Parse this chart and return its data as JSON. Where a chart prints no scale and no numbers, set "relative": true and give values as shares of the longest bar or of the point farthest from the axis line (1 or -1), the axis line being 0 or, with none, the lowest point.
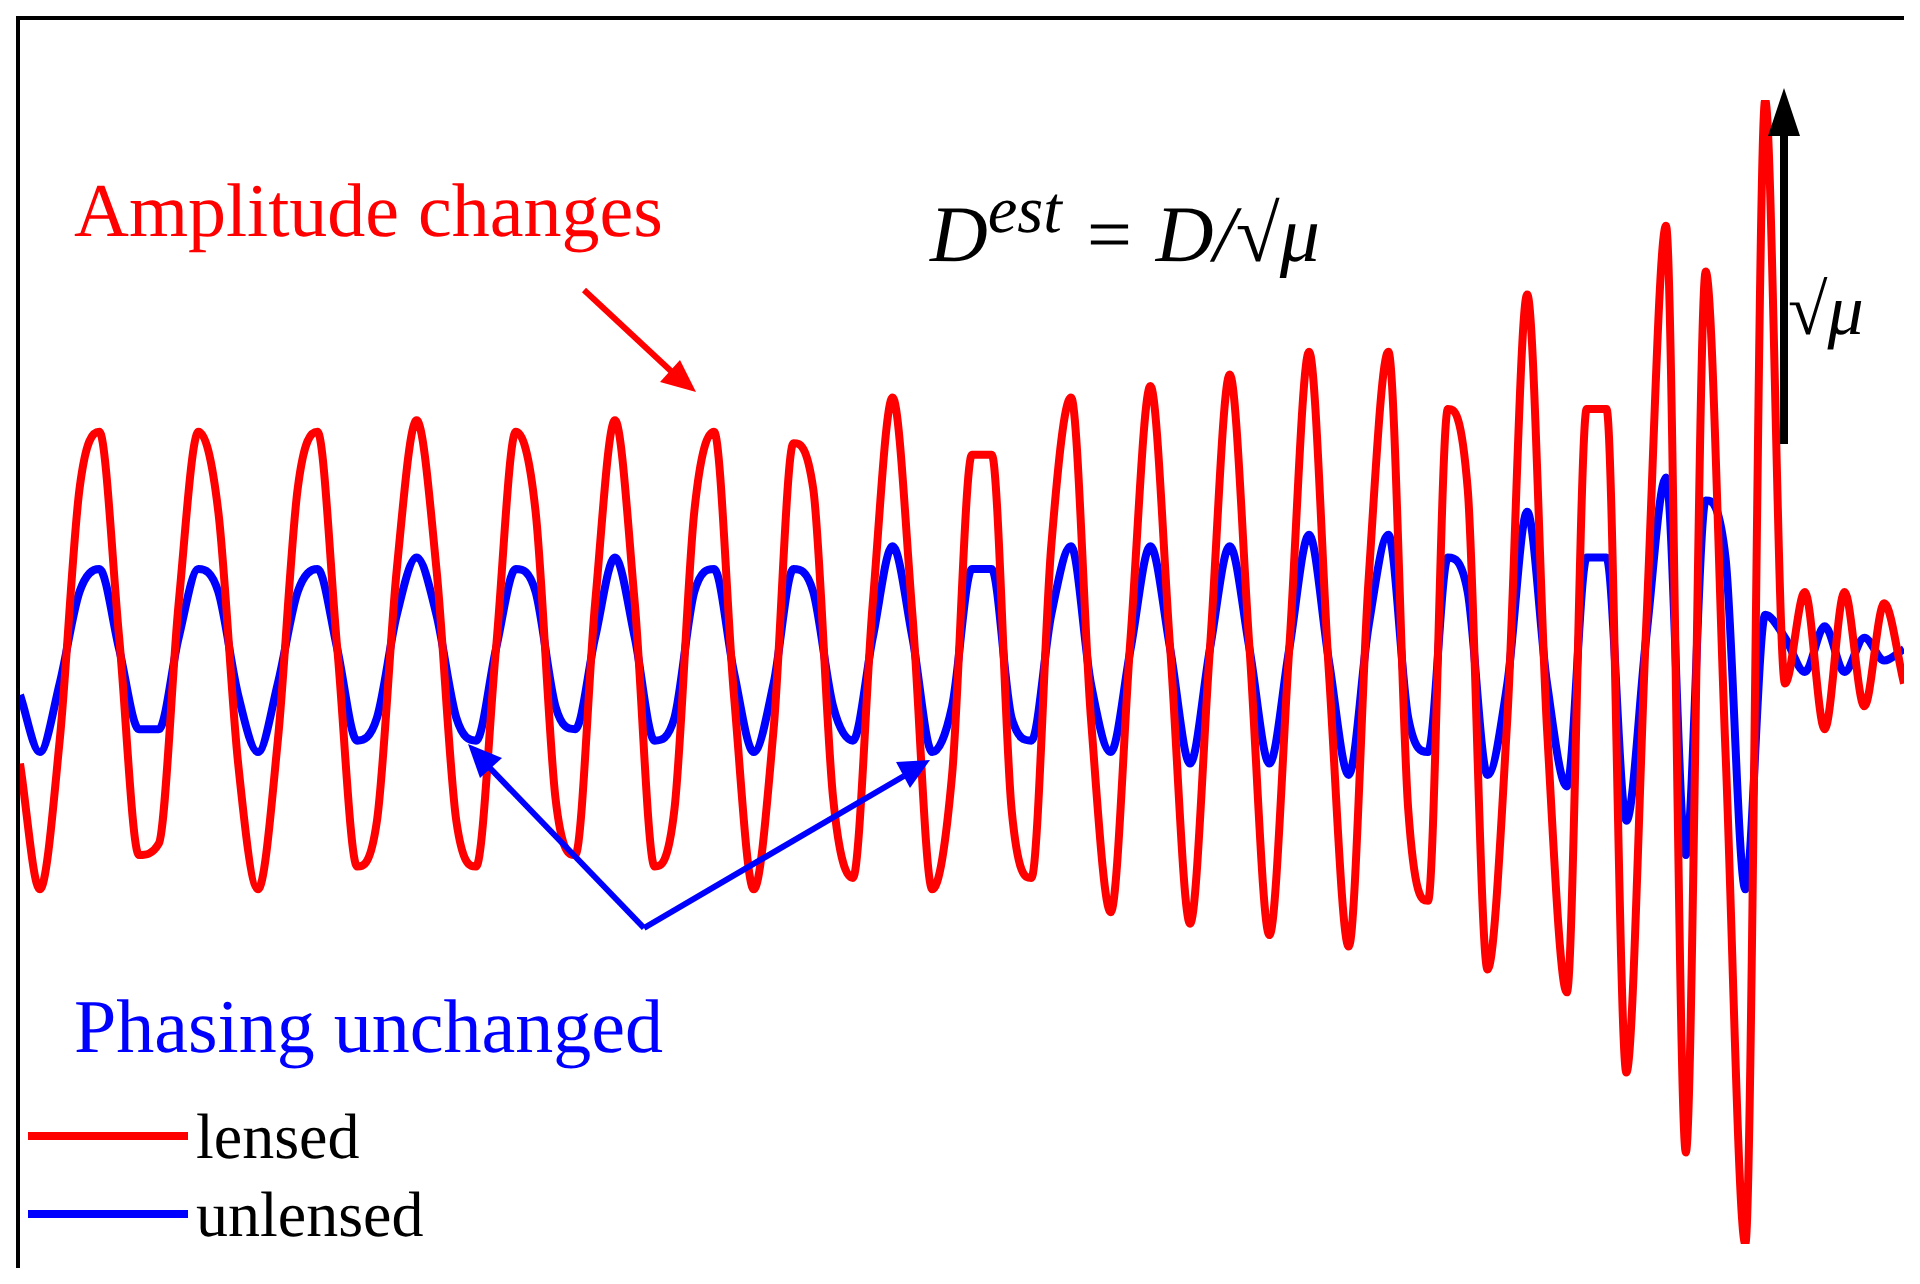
{
  "chart_data": {
    "type": "line",
    "relative": true,
    "grid": false,
    "legend": "bottom left",
    "marker": "none",
    "line_style": "solid",
    "categories": [
      null,
      null,
      null,
      null,
      null,
      null,
      null,
      null,
      null,
      null,
      null,
      null,
      null,
      null,
      null,
      null,
      null,
      null,
      null,
      null,
      null,
      null,
      null,
      null,
      null,
      null,
      null,
      null,
      null,
      null,
      null,
      null,
      null,
      null,
      null,
      null,
      null,
      null,
      null,
      null,
      null,
      null,
      null,
      null,
      null,
      null,
      null,
      null,
      null,
      null,
      null,
      null,
      null,
      null,
      null,
      null,
      null,
      null,
      null,
      null,
      null,
      null,
      null,
      null,
      null,
      null,
      null,
      null,
      null,
      null,
      null,
      null,
      null,
      null,
      null,
      null,
      null,
      null,
      null,
      null,
      null,
      null,
      null,
      null,
      null,
      null,
      null,
      null,
      null,
      null,
      null,
      null,
      null,
      null,
      null,
      null
    ],
    "series": [
      {
        "name": "lensed",
        "color": "#ff0000",
        "values": [
          0.42,
          0.31,
          0.44,
          0.66,
          0.71,
          0.53,
          0.34,
          0.35,
          0.56,
          0.71,
          0.64,
          0.42,
          0.31,
          0.44,
          0.66,
          0.71,
          0.52,
          0.33,
          0.37,
          0.59,
          0.72,
          0.59,
          0.37,
          0.33,
          0.52,
          0.71,
          0.64,
          0.39,
          0.34,
          0.56,
          0.72,
          0.56,
          0.33,
          0.38,
          0.64,
          0.71,
          0.48,
          0.31,
          0.45,
          0.7,
          0.66,
          0.39,
          0.32,
          0.56,
          0.74,
          0.55,
          0.31,
          0.41,
          0.69,
          0.69,
          0.38,
          0.32,
          0.61,
          0.74,
          0.46,
          0.29,
          0.53,
          0.75,
          0.52,
          0.28,
          0.52,
          0.76,
          0.52,
          0.27,
          0.52,
          0.78,
          0.5,
          0.26,
          0.58,
          0.78,
          0.38,
          0.3,
          0.73,
          0.66,
          0.24,
          0.46,
          0.83,
          0.45,
          0.22,
          0.73,
          0.73,
          0.15,
          0.54,
          0.89,
          0.08,
          0.85,
          0.43,
          0,
          1,
          0.49,
          0.57,
          0.45,
          0.57,
          0.47,
          0.56,
          0.49
        ]
      },
      {
        "name": "unlensed",
        "color": "#0000ff",
        "values": [
          0.48,
          0.43,
          0.49,
          0.57,
          0.59,
          0.52,
          0.45,
          0.45,
          0.53,
          0.59,
          0.57,
          0.48,
          0.43,
          0.49,
          0.57,
          0.59,
          0.52,
          0.44,
          0.46,
          0.55,
          0.6,
          0.55,
          0.46,
          0.44,
          0.52,
          0.59,
          0.57,
          0.47,
          0.45,
          0.53,
          0.6,
          0.53,
          0.44,
          0.46,
          0.57,
          0.59,
          0.5,
          0.43,
          0.49,
          0.59,
          0.57,
          0.47,
          0.44,
          0.53,
          0.61,
          0.53,
          0.43,
          0.47,
          0.59,
          0.59,
          0.46,
          0.44,
          0.55,
          0.61,
          0.49,
          0.43,
          0.52,
          0.61,
          0.52,
          0.42,
          0.52,
          0.61,
          0.52,
          0.42,
          0.52,
          0.62,
          0.51,
          0.41,
          0.54,
          0.62,
          0.46,
          0.43,
          0.6,
          0.57,
          0.41,
          0.49,
          0.64,
          0.49,
          0.4,
          0.6,
          0.6,
          0.37,
          0.53,
          0.67,
          0.34,
          0.65,
          0.6,
          0.31,
          0.55,
          0.53,
          0.5,
          0.54,
          0.5,
          0.53,
          0.51,
          0.52
        ]
      }
    ],
    "annotations": [
      "Amplitude changes",
      "D$^{est}$ = D/√μ",
      "√μ",
      "Phasing unchanged"
    ]
  }
}
